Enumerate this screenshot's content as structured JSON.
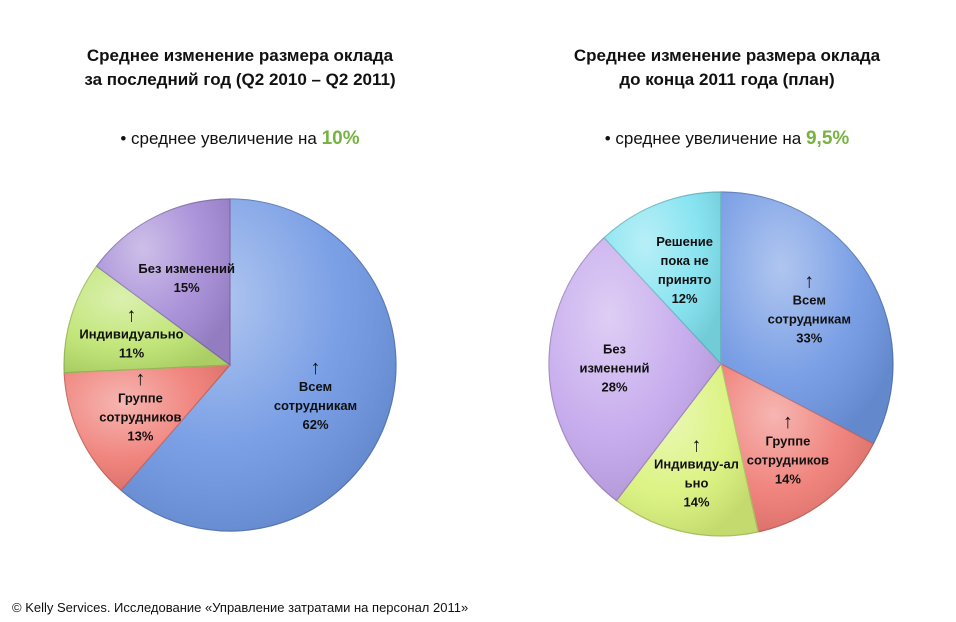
{
  "charts": [
    {
      "title_line1": "Среднее изменение размера оклада",
      "title_line2": "за последний год (Q2 2010 – Q2 2011)",
      "avg_label": "• среднее увеличение на ",
      "avg_value": "10%"
    },
    {
      "title_line1": "Среднее изменение размера оклада",
      "title_line2": "до конца 2011 года (план)",
      "avg_label": "• среднее увеличение на ",
      "avg_value": "9,5%"
    }
  ],
  "chart_data": [
    {
      "type": "pie",
      "title": "Среднее изменение размера оклада за последний год (Q2 2010 – Q2 2011)",
      "slices": [
        {
          "label_lines": [
            "Всем",
            "сотрудникам"
          ],
          "value": 62,
          "pct": "62%",
          "arrow": true,
          "color": "#6f97e3"
        },
        {
          "label_lines": [
            "Группе",
            "сотрудников"
          ],
          "value": 13,
          "pct": "13%",
          "arrow": true,
          "color": "#ef7a73"
        },
        {
          "label_lines": [
            "Индивидуально"
          ],
          "value": 11,
          "pct": "11%",
          "arrow": true,
          "color": "#bde46f"
        },
        {
          "label_lines": [
            "Без изменений"
          ],
          "value": 15,
          "pct": "15%",
          "arrow": false,
          "color": "#a48ad6"
        }
      ]
    },
    {
      "type": "pie",
      "title": "Среднее изменение размера оклада до конца 2011 года (план)",
      "slices": [
        {
          "label_lines": [
            "Всем",
            "сотрудникам"
          ],
          "value": 33,
          "pct": "33%",
          "arrow": true,
          "color": "#6f97e3"
        },
        {
          "label_lines": [
            "Группе",
            "сотрудников"
          ],
          "value": 14,
          "pct": "14%",
          "arrow": true,
          "color": "#ef7a73"
        },
        {
          "label_lines": [
            "Индивиду-ал",
            "ьно"
          ],
          "value": 14,
          "pct": "14%",
          "arrow": true,
          "color": "#d9f27a"
        },
        {
          "label_lines": [
            "Без",
            "изменений"
          ],
          "value": 28,
          "pct": "28%",
          "arrow": false,
          "color": "#c3a6ec"
        },
        {
          "label_lines": [
            "Решение",
            "пока не",
            "принято"
          ],
          "value": 12,
          "pct": "12%",
          "arrow": false,
          "color": "#7fe2f0"
        }
      ]
    }
  ],
  "footer": "© Kelly Services. Исследование «Управление затратами на персонал 2011»"
}
